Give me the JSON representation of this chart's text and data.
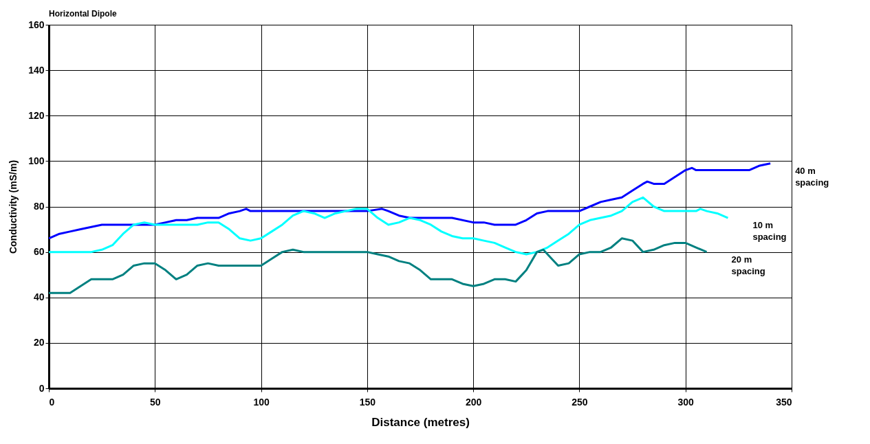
{
  "chart_data": {
    "type": "line",
    "title": "Horizontal Dipole",
    "xlabel": "Distance (metres)",
    "ylabel": "Conductivity (mS/m)",
    "xlim": [
      0,
      350
    ],
    "xticks": [
      0,
      50,
      100,
      150,
      200,
      250,
      300,
      350
    ],
    "ylim": [
      0,
      160
    ],
    "yticks": [
      0,
      20,
      40,
      60,
      80,
      100,
      120,
      140,
      160
    ],
    "grid": true,
    "legend": false,
    "series": [
      {
        "name": "40 m\nspacing",
        "color": "#0000ff",
        "x": [
          0,
          5,
          10,
          15,
          20,
          25,
          30,
          40,
          50,
          55,
          60,
          65,
          70,
          80,
          85,
          90,
          93,
          95,
          100,
          150,
          157,
          160,
          165,
          170,
          190,
          200,
          205,
          210,
          220,
          225,
          230,
          235,
          240,
          250,
          255,
          260,
          265,
          270,
          275,
          280,
          282,
          285,
          290,
          295,
          300,
          303,
          305,
          320,
          330,
          335,
          340
        ],
        "values": [
          66,
          68,
          69,
          70,
          71,
          72,
          72,
          72,
          72,
          73,
          74,
          74,
          75,
          75,
          77,
          78,
          79,
          78,
          78,
          78,
          79,
          78,
          76,
          75,
          75,
          73,
          73,
          72,
          72,
          74,
          77,
          78,
          78,
          78,
          80,
          82,
          83,
          84,
          87,
          90,
          91,
          90,
          90,
          93,
          96,
          97,
          96,
          96,
          96,
          98,
          99
        ]
      },
      {
        "name": "10 m\nspacing",
        "color": "#00ffff",
        "x": [
          0,
          20,
          25,
          30,
          35,
          40,
          45,
          50,
          60,
          70,
          75,
          80,
          85,
          90,
          95,
          100,
          105,
          110,
          115,
          120,
          125,
          130,
          135,
          140,
          145,
          150,
          155,
          160,
          165,
          170,
          175,
          180,
          185,
          190,
          195,
          200,
          205,
          210,
          215,
          220,
          225,
          230,
          235,
          240,
          245,
          250,
          255,
          260,
          265,
          270,
          275,
          280,
          285,
          290,
          295,
          300,
          305,
          307,
          310,
          315,
          320
        ],
        "values": [
          60,
          60,
          61,
          63,
          68,
          72,
          73,
          72,
          72,
          72,
          73,
          73,
          70,
          66,
          65,
          66,
          69,
          72,
          76,
          78,
          77,
          75,
          77,
          78,
          79,
          79,
          75,
          72,
          73,
          75,
          74,
          72,
          69,
          67,
          66,
          66,
          65,
          64,
          62,
          60,
          59,
          60,
          62,
          65,
          68,
          72,
          74,
          75,
          76,
          78,
          82,
          84,
          80,
          78,
          78,
          78,
          78,
          79,
          78,
          77,
          75
        ]
      },
      {
        "name": "20 m\nspacing",
        "color": "#008080",
        "x": [
          0,
          10,
          15,
          20,
          25,
          30,
          35,
          40,
          45,
          50,
          55,
          60,
          65,
          70,
          75,
          80,
          100,
          105,
          110,
          115,
          120,
          145,
          150,
          155,
          160,
          165,
          170,
          175,
          180,
          185,
          190,
          195,
          200,
          205,
          210,
          215,
          220,
          225,
          230,
          233,
          235,
          240,
          245,
          250,
          255,
          260,
          265,
          270,
          275,
          280,
          285,
          290,
          295,
          300,
          305,
          310
        ],
        "values": [
          42,
          42,
          45,
          48,
          48,
          48,
          50,
          54,
          55,
          55,
          52,
          48,
          50,
          54,
          55,
          54,
          54,
          57,
          60,
          61,
          60,
          60,
          60,
          59,
          58,
          56,
          55,
          52,
          48,
          48,
          48,
          46,
          45,
          46,
          48,
          48,
          47,
          52,
          60,
          61,
          59,
          54,
          55,
          59,
          60,
          60,
          62,
          66,
          65,
          60,
          61,
          63,
          64,
          64,
          62,
          60
        ]
      }
    ]
  }
}
